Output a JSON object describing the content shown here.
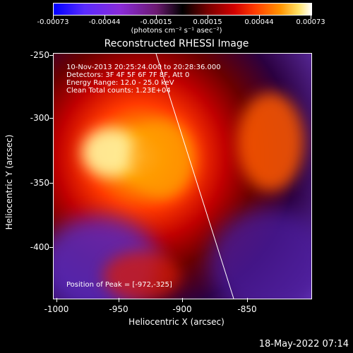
{
  "colorbar": {
    "ticks": [
      "-0.00073",
      "-0.00044",
      "-0.00015",
      "0.00015",
      "0.00044",
      "0.00073"
    ],
    "units": "(photons cm⁻² s⁻¹ asec⁻²)"
  },
  "image": {
    "title": "Reconstructed RHESSI Image",
    "annotations": {
      "time_range": "10-Nov-2013 20:25:24.000 to 20:28:36.000",
      "detectors": "Detectors: 3F 4F 5F 6F 7F 8F, Att 0",
      "energy_range": "Energy Range: 12.0 - 25.0 keV",
      "method": "Clean     Total counts: 1.23E+04",
      "peak": "Position of Peak = [-972,-325]"
    },
    "x_axis": {
      "label": "Heliocentric X (arcsec)",
      "ticks": [
        "-1000",
        "-950",
        "-900",
        "-850"
      ]
    },
    "y_axis": {
      "label": "Heliocentric Y (arcsec)",
      "ticks": [
        "-250",
        "-300",
        "-350",
        "-400"
      ]
    }
  },
  "footer": {
    "timestamp": "18-May-2022 07:14"
  },
  "colors": {
    "low": "#0000ff",
    "mid": "#000000",
    "high": "#ffffff"
  }
}
